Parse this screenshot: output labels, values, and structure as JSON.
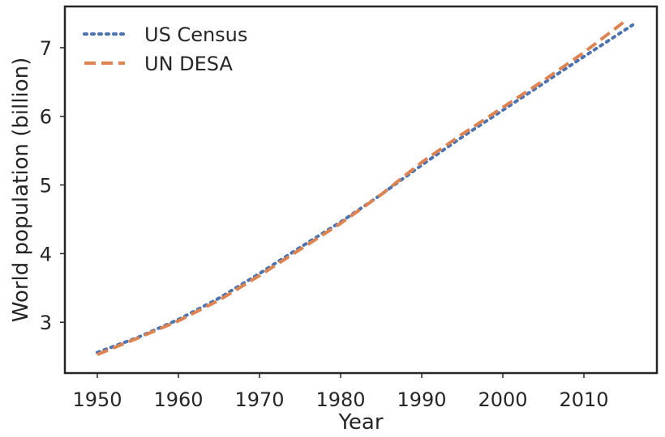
{
  "chart_data": {
    "type": "line",
    "xlabel": "Year",
    "ylabel": "World population (billion)",
    "xlim": [
      1946,
      2019
    ],
    "ylim": [
      2.26,
      7.6
    ],
    "xticks": [
      1950,
      1960,
      1970,
      1980,
      1990,
      2000,
      2010
    ],
    "yticks": [
      3,
      4,
      5,
      6,
      7
    ],
    "grid": false,
    "legend": "top-left",
    "series": [
      {
        "name": "US Census",
        "color": "#4c72b0",
        "style": "dotted",
        "x": [
          1950,
          1955,
          1960,
          1965,
          1970,
          1975,
          1980,
          1985,
          1990,
          1995,
          2000,
          2005,
          2010,
          2016
        ],
        "y": [
          2.56,
          2.78,
          3.04,
          3.35,
          3.71,
          4.09,
          4.46,
          4.86,
          5.29,
          5.7,
          6.09,
          6.48,
          6.87,
          7.33
        ]
      },
      {
        "name": "UN DESA",
        "color": "#dd8452",
        "style": "dashed",
        "x": [
          1950,
          1955,
          1960,
          1965,
          1970,
          1975,
          1980,
          1985,
          1990,
          1995,
          2000,
          2005,
          2010,
          2015
        ],
        "y": [
          2.53,
          2.77,
          3.02,
          3.32,
          3.68,
          4.06,
          4.44,
          4.86,
          5.33,
          5.74,
          6.13,
          6.52,
          6.93,
          7.38
        ]
      }
    ]
  }
}
